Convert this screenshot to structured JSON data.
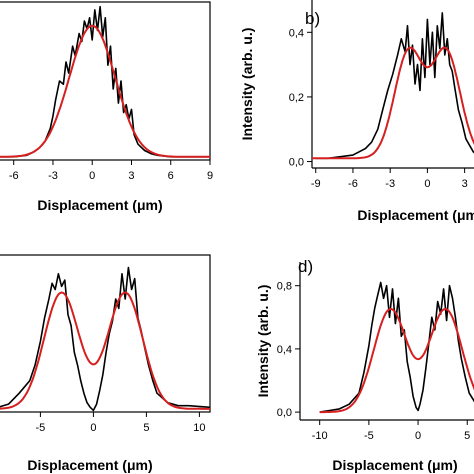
{
  "chart_data": [
    {
      "type": "line",
      "panel_label": "",
      "xlabel": "Displacement (μm)",
      "ylabel": "",
      "xticks": [
        "-6",
        "-3",
        "0",
        "3",
        "6",
        "9"
      ],
      "yticks": [],
      "xlim": [
        -7.2,
        9
      ],
      "ylim": [
        0,
        1.0
      ],
      "series": [
        {
          "color": "#000000",
          "x": [
            -7.2,
            -6,
            -5,
            -4.5,
            -4,
            -3.6,
            -3.2,
            -3,
            -2.8,
            -2.5,
            -2.2,
            -2,
            -1.8,
            -1.5,
            -1.3,
            -1,
            -0.8,
            -0.6,
            -0.4,
            -0.2,
            0,
            0.2,
            0.4,
            0.6,
            0.8,
            1,
            1.2,
            1.4,
            1.6,
            1.8,
            2,
            2.2,
            2.4,
            2.6,
            2.8,
            3,
            3.2,
            3.5,
            4,
            4.5,
            5,
            6,
            7,
            8,
            9
          ],
          "y": [
            0.02,
            0.02,
            0.03,
            0.05,
            0.08,
            0.12,
            0.2,
            0.28,
            0.38,
            0.5,
            0.48,
            0.62,
            0.55,
            0.72,
            0.66,
            0.8,
            0.75,
            0.88,
            0.83,
            0.9,
            0.76,
            0.95,
            0.82,
            0.97,
            0.78,
            0.9,
            0.6,
            0.72,
            0.45,
            0.58,
            0.36,
            0.5,
            0.3,
            0.35,
            0.26,
            0.32,
            0.16,
            0.1,
            0.06,
            0.04,
            0.03,
            0.02,
            0.02,
            0.02,
            0.02
          ]
        },
        {
          "color": "#d62020",
          "fit": "gauss",
          "amp": 0.83,
          "mu": 0,
          "sigma": 1.75,
          "base": 0.02,
          "xmin": -7.2,
          "xmax": 9
        }
      ]
    },
    {
      "type": "line",
      "panel_label": "b)",
      "xlabel": "Displacement (μm)",
      "ylabel": "Intensity (arb. u.)",
      "xticks": [
        "-9",
        "-6",
        "-3",
        "0",
        "3"
      ],
      "yticks": [
        "0,0",
        "0,2",
        "0,4"
      ],
      "xlim": [
        -9.3,
        4.4
      ],
      "ylim": [
        -0.02,
        0.5
      ],
      "series": [
        {
          "color": "#000000",
          "x": [
            -9,
            -8,
            -7,
            -6,
            -5,
            -4.5,
            -4,
            -3.6,
            -3.2,
            -2.8,
            -2.4,
            -2.1,
            -1.8,
            -1.6,
            -1.4,
            -1.2,
            -1,
            -0.8,
            -0.6,
            -0.4,
            -0.2,
            0,
            0.2,
            0.4,
            0.6,
            0.8,
            1,
            1.2,
            1.4,
            1.6,
            1.8,
            2,
            2.2,
            2.5,
            2.8,
            3.1,
            3.4,
            3.7,
            4,
            4.4
          ],
          "y": [
            0.01,
            0.01,
            0.015,
            0.02,
            0.04,
            0.06,
            0.1,
            0.16,
            0.22,
            0.27,
            0.33,
            0.38,
            0.34,
            0.42,
            0.3,
            0.36,
            0.24,
            0.3,
            0.22,
            0.38,
            0.26,
            0.44,
            0.3,
            0.4,
            0.26,
            0.42,
            0.35,
            0.46,
            0.33,
            0.38,
            0.3,
            0.28,
            0.23,
            0.16,
            0.12,
            0.07,
            0.05,
            0.03,
            0.02,
            0.01
          ]
        },
        {
          "color": "#d62020",
          "fit": "double_gauss",
          "amp": 0.33,
          "mu": 1.5,
          "sigma": 1.15,
          "base": 0.01,
          "xmin": -9.3,
          "xmax": 4.4
        }
      ]
    },
    {
      "type": "line",
      "panel_label": "",
      "xlabel": "Displacement (μm)",
      "ylabel": "",
      "xticks": [
        "-5",
        "0",
        "5",
        "10"
      ],
      "yticks": [],
      "xlim": [
        -9,
        11
      ],
      "ylim": [
        0,
        1.0
      ],
      "series": [
        {
          "color": "#000000",
          "x": [
            -9,
            -8,
            -7,
            -6,
            -5.5,
            -5,
            -4.6,
            -4.2,
            -3.9,
            -3.6,
            -3.3,
            -3,
            -2.7,
            -2.4,
            -2.1,
            -1.8,
            -1.5,
            -1.2,
            -0.9,
            -0.6,
            -0.3,
            0,
            0.3,
            0.6,
            0.9,
            1.2,
            1.5,
            1.8,
            2.1,
            2.4,
            2.7,
            3,
            3.3,
            3.6,
            3.9,
            4.2,
            4.5,
            4.8,
            5.2,
            5.6,
            6,
            7,
            8,
            9,
            11
          ],
          "y": [
            0.03,
            0.05,
            0.12,
            0.2,
            0.3,
            0.45,
            0.6,
            0.72,
            0.82,
            0.78,
            0.88,
            0.8,
            0.84,
            0.62,
            0.55,
            0.38,
            0.3,
            0.2,
            0.12,
            0.06,
            0.03,
            0.01,
            0.05,
            0.14,
            0.24,
            0.38,
            0.5,
            0.58,
            0.72,
            0.66,
            0.88,
            0.72,
            0.92,
            0.78,
            0.85,
            0.6,
            0.52,
            0.42,
            0.3,
            0.2,
            0.12,
            0.06,
            0.04,
            0.04,
            0.03
          ]
        },
        {
          "color": "#d62020",
          "fit": "double_gauss",
          "amp": 0.74,
          "mu": 3,
          "sigma": 1.65,
          "base": 0.02,
          "xmin": -9,
          "xmax": 11
        }
      ]
    },
    {
      "type": "line",
      "panel_label": "d)",
      "xlabel": "Displacement (μm)",
      "ylabel": "Intensity (arb. u.)",
      "xticks": [
        "-10",
        "-5",
        "0",
        "5"
      ],
      "yticks": [
        "0,0",
        "0,4",
        "0,8"
      ],
      "xlim": [
        -12,
        6.5
      ],
      "ylim": [
        -0.05,
        0.95
      ],
      "series": [
        {
          "color": "#000000",
          "x": [
            -10,
            -9,
            -8,
            -7,
            -6,
            -5.5,
            -5,
            -4.7,
            -4.4,
            -4.1,
            -3.8,
            -3.5,
            -3.2,
            -2.9,
            -2.6,
            -2.3,
            -2,
            -1.7,
            -1.4,
            -1.1,
            -0.8,
            -0.5,
            -0.2,
            0,
            0.2,
            0.5,
            0.8,
            1.1,
            1.4,
            1.7,
            2,
            2.3,
            2.6,
            2.9,
            3.2,
            3.5,
            3.8,
            4.1,
            4.4,
            4.8,
            5.2,
            6,
            6.5
          ],
          "y": [
            0.0,
            0.01,
            0.02,
            0.05,
            0.12,
            0.25,
            0.42,
            0.55,
            0.66,
            0.74,
            0.82,
            0.72,
            0.8,
            0.6,
            0.78,
            0.56,
            0.72,
            0.48,
            0.52,
            0.32,
            0.22,
            0.1,
            0.03,
            0.01,
            0.05,
            0.14,
            0.28,
            0.44,
            0.6,
            0.52,
            0.7,
            0.62,
            0.78,
            0.58,
            0.8,
            0.72,
            0.6,
            0.45,
            0.34,
            0.22,
            0.12,
            0.04,
            0.02
          ]
        },
        {
          "color": "#d62020",
          "fit": "double_gauss",
          "amp": 0.65,
          "mu": 2.8,
          "sigma": 1.7,
          "base": 0.0,
          "xmin": -10,
          "xmax": 6.5
        }
      ]
    }
  ]
}
